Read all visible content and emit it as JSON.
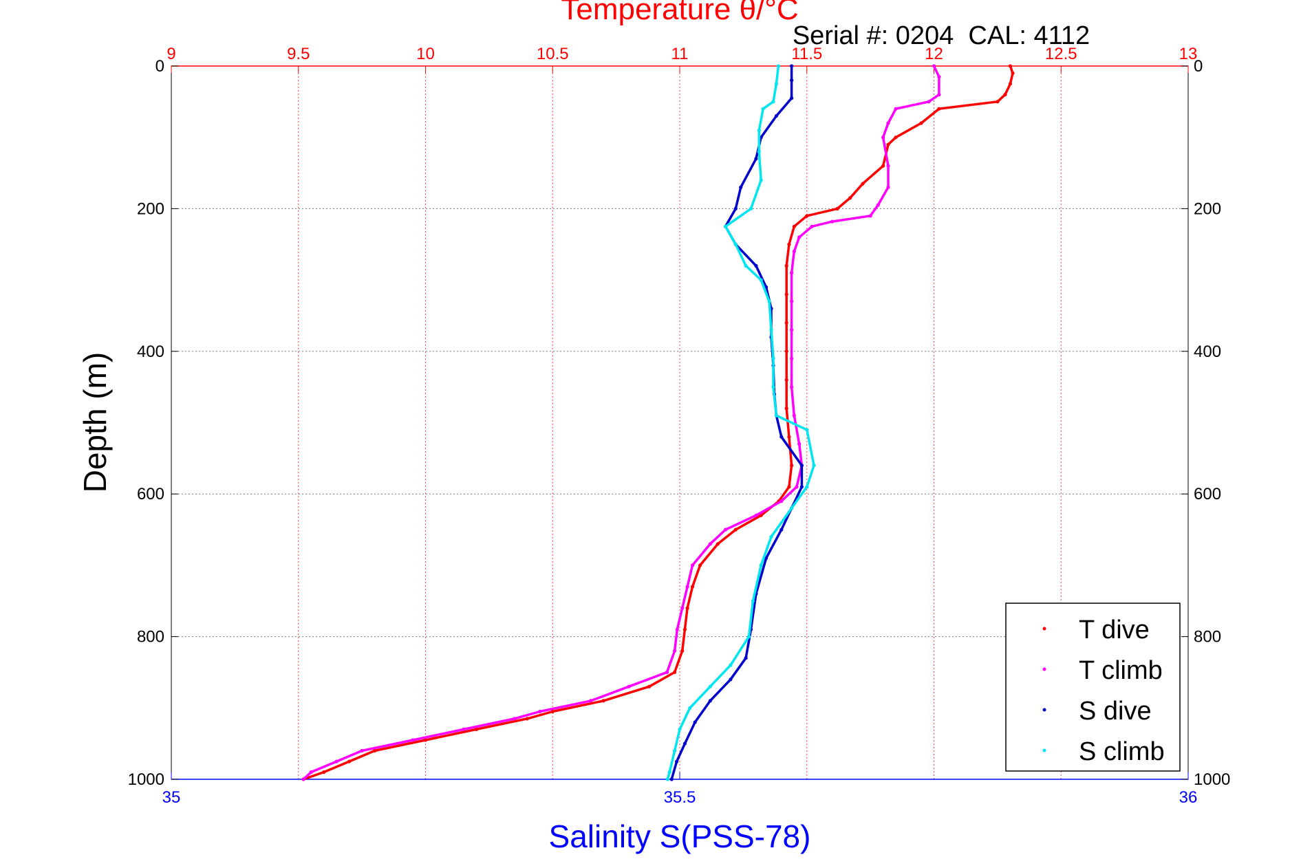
{
  "chart_data": {
    "type": "scatter",
    "title": "Temperature θ/°C",
    "subtitle": "Serial #: 0204  CAL: 4112",
    "ylabel": "Depth (m)",
    "xlabel_bottom": "Salinity S(PSS-78)",
    "y_reversed": true,
    "ylim": [
      0,
      1000
    ],
    "y_ticks": [
      "0",
      "200",
      "400",
      "600",
      "800",
      "1000"
    ],
    "xlim_top": [
      9,
      13
    ],
    "x_ticks_top": [
      "9",
      "9.5",
      "10",
      "10.5",
      "11",
      "11.5",
      "12",
      "12.5",
      "13"
    ],
    "xlim_bottom": [
      35,
      36
    ],
    "x_ticks_bottom": [
      "35",
      "35.5",
      "36"
    ],
    "grid": true,
    "legend_position": "bottom-right",
    "colors": {
      "t_dive": "#ff0000",
      "t_climb": "#ff00ff",
      "s_dive": "#0000cc",
      "s_climb": "#00e5ee",
      "title": "#ff0000",
      "salinity_axis": "#0000ff"
    },
    "series": [
      {
        "name": "T dive",
        "axis": "top",
        "color": "#ff0000",
        "points": [
          [
            12.3,
            0
          ],
          [
            12.31,
            10
          ],
          [
            12.3,
            25
          ],
          [
            12.28,
            40
          ],
          [
            12.25,
            50
          ],
          [
            12.02,
            60
          ],
          [
            11.95,
            80
          ],
          [
            11.85,
            100
          ],
          [
            11.82,
            110
          ],
          [
            11.8,
            140
          ],
          [
            11.72,
            165
          ],
          [
            11.67,
            185
          ],
          [
            11.62,
            200
          ],
          [
            11.5,
            210
          ],
          [
            11.45,
            225
          ],
          [
            11.43,
            250
          ],
          [
            11.42,
            280
          ],
          [
            11.42,
            320
          ],
          [
            11.42,
            360
          ],
          [
            11.42,
            400
          ],
          [
            11.42,
            440
          ],
          [
            11.42,
            480
          ],
          [
            11.43,
            520
          ],
          [
            11.44,
            560
          ],
          [
            11.43,
            590
          ],
          [
            11.39,
            610
          ],
          [
            11.32,
            630
          ],
          [
            11.22,
            650
          ],
          [
            11.15,
            670
          ],
          [
            11.08,
            700
          ],
          [
            11.05,
            730
          ],
          [
            11.03,
            760
          ],
          [
            11.02,
            790
          ],
          [
            11.01,
            820
          ],
          [
            10.98,
            850
          ],
          [
            10.88,
            870
          ],
          [
            10.7,
            890
          ],
          [
            10.5,
            905
          ],
          [
            10.4,
            915
          ],
          [
            10.2,
            930
          ],
          [
            10.0,
            945
          ],
          [
            9.8,
            960
          ],
          [
            9.7,
            975
          ],
          [
            9.6,
            990
          ],
          [
            9.52,
            1000
          ]
        ]
      },
      {
        "name": "T climb",
        "axis": "top",
        "color": "#ff00ff",
        "points": [
          [
            12.0,
            0
          ],
          [
            12.02,
            15
          ],
          [
            12.02,
            40
          ],
          [
            11.98,
            50
          ],
          [
            11.85,
            60
          ],
          [
            11.82,
            80
          ],
          [
            11.8,
            100
          ],
          [
            11.82,
            140
          ],
          [
            11.82,
            170
          ],
          [
            11.78,
            195
          ],
          [
            11.75,
            210
          ],
          [
            11.6,
            218
          ],
          [
            11.52,
            225
          ],
          [
            11.47,
            240
          ],
          [
            11.45,
            260
          ],
          [
            11.44,
            290
          ],
          [
            11.44,
            330
          ],
          [
            11.44,
            370
          ],
          [
            11.44,
            410
          ],
          [
            11.44,
            450
          ],
          [
            11.45,
            490
          ],
          [
            11.47,
            530
          ],
          [
            11.48,
            560
          ],
          [
            11.46,
            590
          ],
          [
            11.4,
            610
          ],
          [
            11.3,
            630
          ],
          [
            11.18,
            650
          ],
          [
            11.12,
            670
          ],
          [
            11.05,
            700
          ],
          [
            11.03,
            730
          ],
          [
            11.01,
            760
          ],
          [
            10.99,
            790
          ],
          [
            10.98,
            820
          ],
          [
            10.95,
            850
          ],
          [
            10.8,
            870
          ],
          [
            10.65,
            890
          ],
          [
            10.45,
            905
          ],
          [
            10.35,
            915
          ],
          [
            10.15,
            930
          ],
          [
            9.95,
            945
          ],
          [
            9.75,
            960
          ],
          [
            9.65,
            975
          ],
          [
            9.55,
            990
          ],
          [
            9.52,
            1000
          ]
        ]
      },
      {
        "name": "S dive",
        "axis": "bottom",
        "color": "#0000cc",
        "points": [
          [
            35.61,
            0
          ],
          [
            35.61,
            20
          ],
          [
            35.61,
            45
          ],
          [
            35.595,
            70
          ],
          [
            35.58,
            100
          ],
          [
            35.575,
            130
          ],
          [
            35.56,
            170
          ],
          [
            35.555,
            200
          ],
          [
            35.545,
            225
          ],
          [
            35.555,
            250
          ],
          [
            35.575,
            280
          ],
          [
            35.585,
            310
          ],
          [
            35.59,
            340
          ],
          [
            35.59,
            380
          ],
          [
            35.592,
            420
          ],
          [
            35.593,
            460
          ],
          [
            35.595,
            490
          ],
          [
            35.6,
            520
          ],
          [
            35.62,
            560
          ],
          [
            35.62,
            590
          ],
          [
            35.61,
            620
          ],
          [
            35.6,
            650
          ],
          [
            35.585,
            690
          ],
          [
            35.575,
            740
          ],
          [
            35.57,
            790
          ],
          [
            35.565,
            830
          ],
          [
            35.55,
            860
          ],
          [
            35.53,
            890
          ],
          [
            35.515,
            920
          ],
          [
            35.505,
            950
          ],
          [
            35.497,
            975
          ],
          [
            35.492,
            1000
          ]
        ]
      },
      {
        "name": "S climb",
        "axis": "bottom",
        "color": "#00e5ee",
        "points": [
          [
            35.597,
            0
          ],
          [
            35.595,
            25
          ],
          [
            35.592,
            50
          ],
          [
            35.582,
            60
          ],
          [
            35.578,
            90
          ],
          [
            35.578,
            120
          ],
          [
            35.58,
            160
          ],
          [
            35.57,
            200
          ],
          [
            35.545,
            225
          ],
          [
            35.555,
            250
          ],
          [
            35.565,
            280
          ],
          [
            35.58,
            300
          ],
          [
            35.588,
            330
          ],
          [
            35.59,
            370
          ],
          [
            35.592,
            410
          ],
          [
            35.592,
            450
          ],
          [
            35.595,
            490
          ],
          [
            35.625,
            510
          ],
          [
            35.632,
            560
          ],
          [
            35.625,
            590
          ],
          [
            35.61,
            620
          ],
          [
            35.59,
            660
          ],
          [
            35.58,
            700
          ],
          [
            35.572,
            750
          ],
          [
            35.568,
            800
          ],
          [
            35.55,
            840
          ],
          [
            35.53,
            870
          ],
          [
            35.51,
            900
          ],
          [
            35.5,
            930
          ],
          [
            35.495,
            960
          ],
          [
            35.49,
            990
          ],
          [
            35.488,
            1000
          ]
        ]
      }
    ]
  }
}
